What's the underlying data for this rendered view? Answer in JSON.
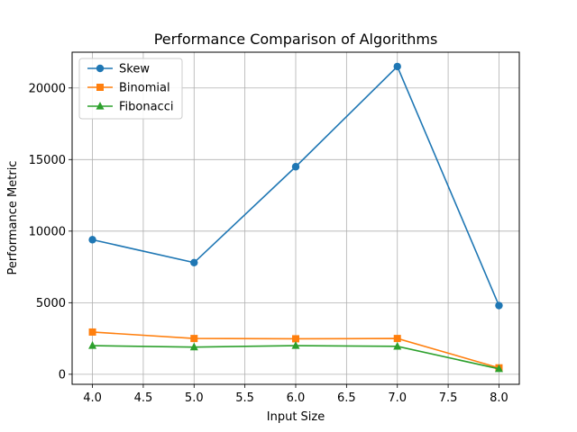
{
  "chart_data": {
    "type": "line",
    "title": "Performance Comparison of Algorithms",
    "xlabel": "Input Size",
    "ylabel": "Performance Metric",
    "xlim": [
      3.8,
      8.2
    ],
    "ylim": [
      -700,
      22500
    ],
    "xticks": [
      4.0,
      4.5,
      5.0,
      5.5,
      6.0,
      6.5,
      7.0,
      7.5,
      8.0
    ],
    "xtick_labels": [
      "4.0",
      "4.5",
      "5.0",
      "5.5",
      "6.0",
      "6.5",
      "7.0",
      "7.5",
      "8.0"
    ],
    "yticks": [
      0,
      5000,
      10000,
      15000,
      20000
    ],
    "ytick_labels": [
      "0",
      "5000",
      "10000",
      "15000",
      "20000"
    ],
    "grid": true,
    "legend_position": "upper-left",
    "x": [
      4,
      5,
      6,
      7,
      8
    ],
    "series": [
      {
        "name": "Skew",
        "values": [
          9400,
          7800,
          14500,
          21500,
          4800
        ],
        "color": "#1f77b4",
        "marker": "circle"
      },
      {
        "name": "Binomial",
        "values": [
          2950,
          2500,
          2480,
          2500,
          450
        ],
        "color": "#ff7f0e",
        "marker": "square"
      },
      {
        "name": "Fibonacci",
        "values": [
          2000,
          1900,
          2000,
          1950,
          380
        ],
        "color": "#2ca02c",
        "marker": "triangle"
      }
    ]
  }
}
